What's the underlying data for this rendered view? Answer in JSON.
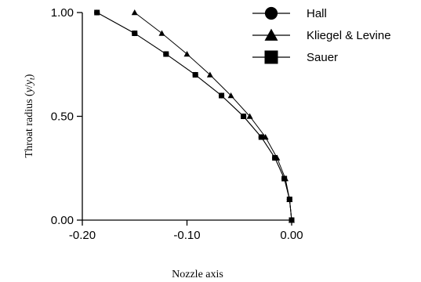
{
  "chart_data": {
    "type": "line",
    "xlabel": "Nozzle axis",
    "ylabel_main": "Throat radius (",
    "ylabel_y": "y",
    "ylabel_slash": "/",
    "ylabel_yt": "y",
    "ylabel_sub": "t",
    "ylabel_close": ")",
    "xlim": [
      -0.2,
      0.0
    ],
    "ylim": [
      0.0,
      1.0
    ],
    "x_ticks": [
      -0.2,
      -0.1,
      0.0
    ],
    "x_tick_labels": [
      "-0.20",
      "-0.10",
      "0.00"
    ],
    "y_ticks": [
      0.0,
      0.5,
      1.0
    ],
    "y_tick_labels": [
      "0.00",
      "0.50",
      "1.00"
    ],
    "legend_position": "top-right",
    "grid": false,
    "series": [
      {
        "name": "Hall",
        "marker": "circle",
        "x": [
          -0.186,
          -0.15,
          -0.12,
          -0.092,
          -0.067,
          -0.046,
          -0.029,
          -0.016,
          -0.007,
          -0.002,
          0.0
        ],
        "y": [
          1.0,
          0.9,
          0.8,
          0.7,
          0.6,
          0.5,
          0.4,
          0.3,
          0.2,
          0.1,
          0.0
        ]
      },
      {
        "name": "Kliegel & Levine",
        "marker": "triangle",
        "x": [
          -0.15,
          -0.124,
          -0.1,
          -0.078,
          -0.058,
          -0.04,
          -0.025,
          -0.014,
          -0.006,
          -0.002,
          0.0
        ],
        "y": [
          1.0,
          0.9,
          0.8,
          0.7,
          0.6,
          0.5,
          0.4,
          0.3,
          0.2,
          0.1,
          0.0
        ]
      },
      {
        "name": "Sauer",
        "marker": "square",
        "x": [
          -0.186,
          -0.15,
          -0.12,
          -0.092,
          -0.067,
          -0.046,
          -0.029,
          -0.016,
          -0.007,
          -0.002,
          0.0
        ],
        "y": [
          1.0,
          0.9,
          0.8,
          0.7,
          0.6,
          0.5,
          0.4,
          0.3,
          0.2,
          0.1,
          0.0
        ]
      }
    ]
  }
}
